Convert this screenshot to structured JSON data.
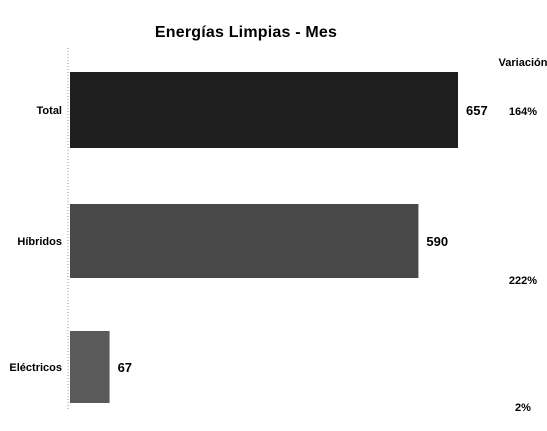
{
  "chart_data": {
    "type": "bar",
    "orientation": "horizontal",
    "title": "Energías  Limpias - Mes",
    "categories": [
      "Total",
      "Híbridos",
      "Eléctricos"
    ],
    "values": [
      657,
      590,
      67
    ],
    "xlim": [
      0,
      657
    ],
    "grid": false,
    "legend": "none",
    "bar_colors": [
      "#1f1f1f",
      "#484848",
      "#5a5a5a"
    ],
    "variation": {
      "header": "Variación",
      "values": [
        "164%",
        "222%",
        "2%"
      ]
    }
  }
}
